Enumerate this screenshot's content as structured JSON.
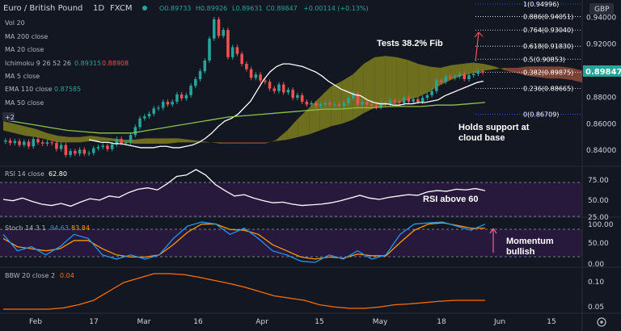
{
  "header": {
    "symbol": "Euro / British Pound",
    "interval": "1D",
    "source": "FXCM",
    "ohlc": {
      "o": "O0.89733",
      "h": "H0.89926",
      "l": "L0.89631",
      "c": "C0.89847",
      "chg": "+0.00114 (+0.13%)"
    },
    "currency": "GBP"
  },
  "indicators": [
    {
      "name": "Vol 20",
      "value": "",
      "color": "#787b86"
    },
    {
      "name": "MA 200 close",
      "value": "",
      "color": "#787b86"
    },
    {
      "name": "MA 20 close",
      "value": "",
      "color": "#787b86"
    },
    {
      "name": "Ichimoku 9 26 52 26",
      "value": "0.89315",
      "value2": "0.88908",
      "color": "#26a69a",
      "color2": "#ef5350"
    },
    {
      "name": "MA 5 close",
      "value": "",
      "color": "#787b86"
    },
    {
      "name": "EMA 110 close",
      "value": "0.87585",
      "color": "#26a69a"
    },
    {
      "name": "MA 50 close",
      "value": "",
      "color": "#787b86"
    }
  ],
  "badge": "+2",
  "last_price": "0.89847",
  "fib_levels": [
    {
      "label": "1(0.94996)",
      "price": 0.94996,
      "color": "#2962ff"
    },
    {
      "label": "0.886(0.94051)",
      "price": 0.94051,
      "color": "#ffffff"
    },
    {
      "label": "0.764(0.93040)",
      "price": 0.9304,
      "color": "#ffffff"
    },
    {
      "label": "0.618(0.91830)",
      "price": 0.9183,
      "color": "#ffffff"
    },
    {
      "label": "0.5(0.90853)",
      "price": 0.90853,
      "color": "#ffffff"
    },
    {
      "label": "0.382(0.89875)",
      "price": 0.89875,
      "color": "#ffffff"
    },
    {
      "label": "0.236(0.88665)",
      "price": 0.88665,
      "color": "#ffffff"
    },
    {
      "label": "0(0.86709)",
      "price": 0.86709,
      "color": "#2962ff"
    }
  ],
  "annotations": {
    "fib_test": "Tests 38.2% Fib",
    "cloud_1": "Holds support at",
    "cloud_2": "cloud base",
    "rsi_note": "RSI above 60",
    "mom_1": "Momentum",
    "mom_2": "bullish"
  },
  "panes": {
    "rsi": {
      "label": "RSI 14 close",
      "value": "62.80",
      "ticks": [
        "75.00",
        "50.00",
        "25.00"
      ]
    },
    "stoch": {
      "label": "Stoch 14 3 1",
      "k": "94.63",
      "d": "83.84",
      "ticks": [
        "100.00",
        "50.00",
        "0.00"
      ]
    },
    "bbw": {
      "label": "BBW 20 close 2",
      "value": "0.04",
      "ticks": [
        "0.10",
        "0.05"
      ]
    }
  },
  "price_ticks": [
    "0.94000",
    "0.92000",
    "0.90000",
    "0.88000",
    "0.86000",
    "0.84000"
  ],
  "x_ticks": [
    "Feb",
    "17",
    "Mar",
    "16",
    "Apr",
    "15",
    "May",
    "18",
    "Jun",
    "15"
  ],
  "colors": {
    "up": "#26a69a",
    "down": "#ef5350",
    "ma": "#ffffff",
    "ema": "#8bc34a",
    "rsi": "#ffffff",
    "stoch_k": "#2196f3",
    "stoch_d": "#ff9800",
    "bbw": "#ff6d00",
    "cloud_bear": "#a0523c",
    "cloud_bull": "#8d8d1e"
  },
  "chart_data": {
    "type": "candlestick",
    "y_range": [
      0.828,
      0.953
    ],
    "x_labels": [
      "Feb",
      "17",
      "Mar",
      "16",
      "Apr",
      "15",
      "May",
      "18",
      "Jun",
      "15"
    ],
    "price_close": [
      0.8475,
      0.8455,
      0.847,
      0.844,
      0.8465,
      0.843,
      0.8485,
      0.846,
      0.845,
      0.846,
      0.8455,
      0.841,
      0.844,
      0.8365,
      0.8395,
      0.8375,
      0.8405,
      0.8375,
      0.838,
      0.8415,
      0.8425,
      0.8435,
      0.841,
      0.8445,
      0.8485,
      0.8455,
      0.846,
      0.8515,
      0.8575,
      0.864,
      0.8655,
      0.8675,
      0.8715,
      0.872,
      0.8765,
      0.8745,
      0.8765,
      0.882,
      0.879,
      0.8815,
      0.8885,
      0.8935,
      0.8995,
      0.9075,
      0.924,
      0.9385,
      0.926,
      0.9305,
      0.91,
      0.9175,
      0.9125,
      0.905,
      0.901,
      0.8945,
      0.897,
      0.8925,
      0.8915,
      0.8865,
      0.8845,
      0.8895,
      0.8835,
      0.8855,
      0.8795,
      0.8815,
      0.8765,
      0.8745,
      0.8755,
      0.8735,
      0.8745,
      0.8755,
      0.8745,
      0.8745,
      0.8735,
      0.8755,
      0.8795,
      0.8825,
      0.8745,
      0.8765,
      0.8745,
      0.8735,
      0.8725,
      0.8755,
      0.8745,
      0.8775,
      0.8765,
      0.8755,
      0.8795,
      0.8765,
      0.8785,
      0.8765,
      0.8795,
      0.8815,
      0.8845,
      0.8925,
      0.8915,
      0.8955,
      0.8945,
      0.8955,
      0.8975,
      0.8935,
      0.8965,
      0.8975,
      0.8995,
      0.8985
    ],
    "series": [
      {
        "name": "MA 20 close",
        "values": [
          0.848,
          0.847,
          0.846,
          0.846,
          0.845,
          0.845,
          0.844,
          0.843,
          0.842,
          0.842,
          0.842,
          0.843,
          0.843,
          0.842,
          0.842,
          0.843,
          0.844,
          0.846,
          0.849,
          0.853,
          0.858,
          0.862,
          0.864,
          0.867,
          0.872,
          0.877,
          0.885,
          0.893,
          0.899,
          0.903,
          0.905,
          0.905,
          0.904,
          0.903,
          0.901,
          0.899,
          0.896,
          0.892,
          0.889,
          0.886,
          0.884,
          0.882,
          0.881,
          0.878,
          0.876,
          0.875,
          0.875,
          0.874,
          0.874,
          0.875,
          0.875,
          0.876,
          0.876,
          0.877,
          0.878,
          0.881,
          0.883,
          0.885,
          0.887,
          0.889,
          0.891,
          0.892
        ]
      },
      {
        "name": "EMA 110 close",
        "values": [
          0.863,
          0.861,
          0.859,
          0.857,
          0.855,
          0.854,
          0.853,
          0.853,
          0.853,
          0.855,
          0.857,
          0.859,
          0.861,
          0.863,
          0.865,
          0.866,
          0.867,
          0.868,
          0.869,
          0.87,
          0.871,
          0.871,
          0.872,
          0.872,
          0.873,
          0.873,
          0.873,
          0.874,
          0.874,
          0.875,
          0.876
        ]
      },
      {
        "name": "RSI 14 close",
        "values": [
          50,
          48,
          52,
          47,
          43,
          41,
          44,
          40,
          46,
          51,
          49,
          55,
          53,
          60,
          65,
          67,
          64,
          73,
          84,
          86,
          94,
          86,
          72,
          63,
          55,
          57,
          52,
          48,
          45,
          46,
          43,
          41,
          42,
          43,
          45,
          48,
          52,
          56,
          52,
          50,
          53,
          55,
          57,
          56,
          61,
          63,
          62,
          65,
          64,
          66,
          63
        ]
      },
      {
        "name": "Stoch %K",
        "values": [
          70,
          30,
          40,
          20,
          40,
          70,
          60,
          20,
          10,
          20,
          10,
          20,
          60,
          90,
          100,
          95,
          70,
          85,
          60,
          30,
          20,
          5,
          2,
          20,
          10,
          30,
          10,
          20,
          70,
          95,
          98,
          100,
          90,
          80,
          95
        ]
      },
      {
        "name": "Stoch %D",
        "values": [
          60,
          40,
          35,
          30,
          35,
          55,
          55,
          35,
          20,
          15,
          15,
          20,
          45,
          75,
          95,
          95,
          82,
          80,
          70,
          45,
          30,
          15,
          10,
          15,
          12,
          22,
          18,
          18,
          50,
          80,
          95,
          98,
          92,
          85,
          85
        ]
      },
      {
        "name": "BBW 20 close 2",
        "values": [
          0.02,
          0.02,
          0.02,
          0.02,
          0.023,
          0.03,
          0.04,
          0.06,
          0.08,
          0.09,
          0.1,
          0.1,
          0.098,
          0.092,
          0.085,
          0.078,
          0.07,
          0.06,
          0.05,
          0.045,
          0.04,
          0.03,
          0.025,
          0.022,
          0.022,
          0.025,
          0.03,
          0.032,
          0.035,
          0.038,
          0.04,
          0.04,
          0.04
        ]
      }
    ]
  }
}
